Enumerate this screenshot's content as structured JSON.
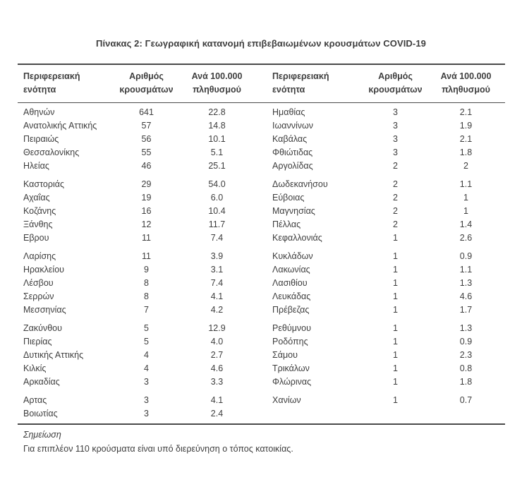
{
  "title": "Πίνακας 2: Γεωγραφική κατανομή επιβεβαιωμένων κρουσμάτων COVID-19",
  "table": {
    "headers": {
      "region": "Περιφερειακή ενότητα",
      "cases_line1": "Αριθμός",
      "cases_line2": "κρουσμάτων",
      "rate_line1": "Ανά 100.000",
      "rate_line2": "πληθυσμού"
    },
    "columns": [
      "region",
      "cases",
      "rate"
    ],
    "left_groups": [
      [
        [
          "Αθηνών",
          "641",
          "22.8"
        ],
        [
          "Ανατολικής Αττικής",
          "57",
          "14.8"
        ],
        [
          "Πειραιώς",
          "56",
          "10.1"
        ],
        [
          "Θεσσαλονίκης",
          "55",
          "5.1"
        ],
        [
          "Ηλείας",
          "46",
          "25.1"
        ]
      ],
      [
        [
          "Καστοριάς",
          "29",
          "54.0"
        ],
        [
          "Αχαΐας",
          "19",
          "6.0"
        ],
        [
          "Κοζάνης",
          "16",
          "10.4"
        ],
        [
          "Ξάνθης",
          "12",
          "11.7"
        ],
        [
          "Εβρου",
          "11",
          "7.4"
        ]
      ],
      [
        [
          "Λαρίσης",
          "11",
          "3.9"
        ],
        [
          "Ηρακλείου",
          "9",
          "3.1"
        ],
        [
          "Λέσβου",
          "8",
          "7.4"
        ],
        [
          "Σερρών",
          "8",
          "4.1"
        ],
        [
          "Μεσσηνίας",
          "7",
          "4.2"
        ]
      ],
      [
        [
          "Ζακύνθου",
          "5",
          "12.9"
        ],
        [
          "Πιερίας",
          "5",
          "4.0"
        ],
        [
          "Δυτικής Αττικής",
          "4",
          "2.7"
        ],
        [
          "Κιλκίς",
          "4",
          "4.6"
        ],
        [
          "Αρκαδίας",
          "3",
          "3.3"
        ]
      ],
      [
        [
          "Αρτας",
          "3",
          "4.1"
        ],
        [
          "Βοιωτίας",
          "3",
          "2.4"
        ]
      ]
    ],
    "right_groups": [
      [
        [
          "Ημαθίας",
          "3",
          "2.1"
        ],
        [
          "Ιωαννίνων",
          "3",
          "1.9"
        ],
        [
          "Καβάλας",
          "3",
          "2.1"
        ],
        [
          "Φθιώτιδας",
          "3",
          "1.8"
        ],
        [
          "Αργολίδας",
          "2",
          "2"
        ]
      ],
      [
        [
          "Δωδεκανήσου",
          "2",
          "1.1"
        ],
        [
          "Εύβοιας",
          "2",
          "1"
        ],
        [
          "Μαγνησίας",
          "2",
          "1"
        ],
        [
          "Πέλλας",
          "2",
          "1.4"
        ],
        [
          "Κεφαλλονιάς",
          "1",
          "2.6"
        ]
      ],
      [
        [
          "Κυκλάδων",
          "1",
          "0.9"
        ],
        [
          "Λακωνίας",
          "1",
          "1.1"
        ],
        [
          "Λασιθίου",
          "1",
          "1.3"
        ],
        [
          "Λευκάδας",
          "1",
          "4.6"
        ],
        [
          "Πρέβεζας",
          "1",
          "1.7"
        ]
      ],
      [
        [
          "Ρεθύμνου",
          "1",
          "1.3"
        ],
        [
          "Ροδόπης",
          "1",
          "0.9"
        ],
        [
          "Σάμου",
          "1",
          "2.3"
        ],
        [
          "Τρικάλων",
          "1",
          "0.8"
        ],
        [
          "Φλώρινας",
          "1",
          "1.8"
        ]
      ],
      [
        [
          "Χανίων",
          "1",
          "0.7"
        ]
      ]
    ]
  },
  "note": {
    "label": "Σημείωση",
    "text": "Για επιπλέον 110 κρούσματα είναι υπό διερεύνηση ο τόπος κατοικίας."
  },
  "colors": {
    "background": "#ffffff",
    "text": "#3e3e3e",
    "rule": "#4a4a4a"
  }
}
